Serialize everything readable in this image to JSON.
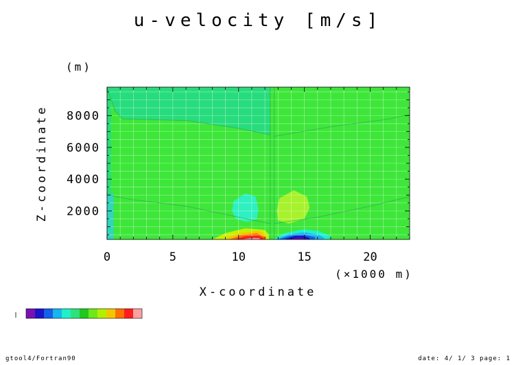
{
  "chart_data": {
    "type": "heatmap",
    "title": "u-velocity [m/s]",
    "xlabel": "X-coordinate",
    "x_unit": "(×1000 m)",
    "ylabel": "Z-coordinate",
    "y_unit": "(m)",
    "xlim": [
      0,
      23
    ],
    "ylim": [
      200,
      9800
    ],
    "x_ticks": [
      0,
      5,
      10,
      15,
      20
    ],
    "y_ticks": [
      2000,
      4000,
      6000,
      8000
    ],
    "grid": true,
    "colorbar": {
      "placement": "bottom-left",
      "colors": [
        "#7a12b0",
        "#1a14c8",
        "#1460e6",
        "#18b4f0",
        "#20f0c8",
        "#2ee27a",
        "#1ec81e",
        "#6ee81a",
        "#b2f000",
        "#f0c800",
        "#ff7000",
        "#ff1e1e",
        "#ffa0a0"
      ]
    },
    "background_level": "#3ee63a",
    "regions": [
      {
        "color": "#27dc7c",
        "x": [
          0,
          0.6,
          1.2,
          6,
          10,
          12.4,
          12.4,
          12.7,
          17,
          21.5,
          23,
          23,
          0
        ],
        "z": [
          9800,
          8300,
          7800,
          7700,
          7200,
          6800,
          9800,
          9800,
          9800,
          9800,
          9800,
          9800,
          9800
        ]
      },
      {
        "color": "#27dc7c",
        "x": [
          0,
          0.3,
          0.3,
          0
        ],
        "z": [
          200,
          200,
          9800,
          9800
        ]
      },
      {
        "color": "#2fd6bc",
        "x": [
          0,
          0.5,
          0.5,
          0
        ],
        "z": [
          200,
          200,
          3100,
          3100
        ]
      },
      {
        "color": "#2ff0c0",
        "x": [
          9.6,
          10.5,
          11.3,
          11.5,
          11.4,
          10.6,
          9.8,
          9.5
        ],
        "z": [
          2600,
          3100,
          2900,
          2100,
          1500,
          1300,
          1500,
          2000
        ]
      },
      {
        "color": "#a6f22c",
        "x": [
          13.1,
          14.2,
          15.2,
          15.4,
          15.0,
          13.8,
          13.0,
          12.9
        ],
        "z": [
          2800,
          3300,
          2900,
          2200,
          1500,
          1200,
          1400,
          2000
        ]
      },
      {
        "color": "#c8f000",
        "x": [
          8.0,
          9.0,
          10.5,
          12.0,
          12.3,
          12.3,
          8.0
        ],
        "z": [
          200,
          600,
          900,
          800,
          500,
          200,
          200
        ]
      },
      {
        "color": "#f0c800",
        "x": [
          8.8,
          10.0,
          11.5,
          12.1,
          12.1,
          8.8
        ],
        "z": [
          200,
          600,
          750,
          500,
          200,
          200
        ]
      },
      {
        "color": "#ff7000",
        "x": [
          9.3,
          10.2,
          11.4,
          12.0,
          12.0,
          9.3
        ],
        "z": [
          200,
          480,
          600,
          350,
          200,
          200
        ]
      },
      {
        "color": "#ff1e1e",
        "x": [
          9.7,
          10.5,
          11.5,
          11.9,
          11.9,
          9.7
        ],
        "z": [
          200,
          400,
          450,
          300,
          200,
          200
        ]
      },
      {
        "color": "#ffa0a0",
        "x": [
          10.2,
          11.0,
          11.6,
          11.6,
          10.2
        ],
        "z": [
          200,
          300,
          280,
          200,
          200
        ]
      },
      {
        "color": "#20f0c8",
        "x": [
          12.6,
          13.5,
          15.0,
          16.2,
          17.0,
          17.0,
          12.6
        ],
        "z": [
          200,
          600,
          850,
          700,
          400,
          200,
          200
        ]
      },
      {
        "color": "#18b4f0",
        "x": [
          12.8,
          13.8,
          15.0,
          16.1,
          16.5,
          16.5,
          12.8
        ],
        "z": [
          200,
          520,
          650,
          500,
          300,
          200,
          200
        ]
      },
      {
        "color": "#1460e6",
        "x": [
          13.0,
          14.0,
          15.0,
          15.8,
          15.8,
          13.0
        ],
        "z": [
          200,
          460,
          500,
          350,
          200,
          200
        ]
      },
      {
        "color": "#1a14c8",
        "x": [
          13.4,
          14.3,
          15.0,
          15.4,
          15.4,
          13.4
        ],
        "z": [
          200,
          420,
          420,
          280,
          200,
          200
        ]
      },
      {
        "color": "#5a10b8",
        "x": [
          13.9,
          14.5,
          15.0,
          15.0,
          13.9
        ],
        "z": [
          200,
          320,
          280,
          200,
          200
        ]
      }
    ],
    "lines": [
      {
        "x": [
          0,
          0.6,
          1.2,
          6,
          10,
          12.4
        ],
        "z": [
          9800,
          8300,
          7800,
          7700,
          7200,
          6800
        ]
      },
      {
        "x": [
          12.7,
          17,
          21.5,
          23
        ],
        "z": [
          6700,
          7300,
          7800,
          8100
        ]
      },
      {
        "x": [
          0,
          0.6,
          2,
          6,
          10,
          12.4
        ],
        "z": [
          3100,
          2900,
          2700,
          2300,
          1600,
          1200
        ]
      },
      {
        "x": [
          12.7,
          16,
          20,
          23
        ],
        "z": [
          1200,
          1600,
          2300,
          2900
        ]
      },
      {
        "x": [
          12.4,
          12.4
        ],
        "z": [
          200,
          9800
        ]
      },
      {
        "x": [
          12.7,
          12.7
        ],
        "z": [
          200,
          9800
        ]
      }
    ]
  },
  "footer": {
    "left": "gtool4/Fortran90",
    "right": "date: 4/ 1/ 3 page: 1"
  }
}
